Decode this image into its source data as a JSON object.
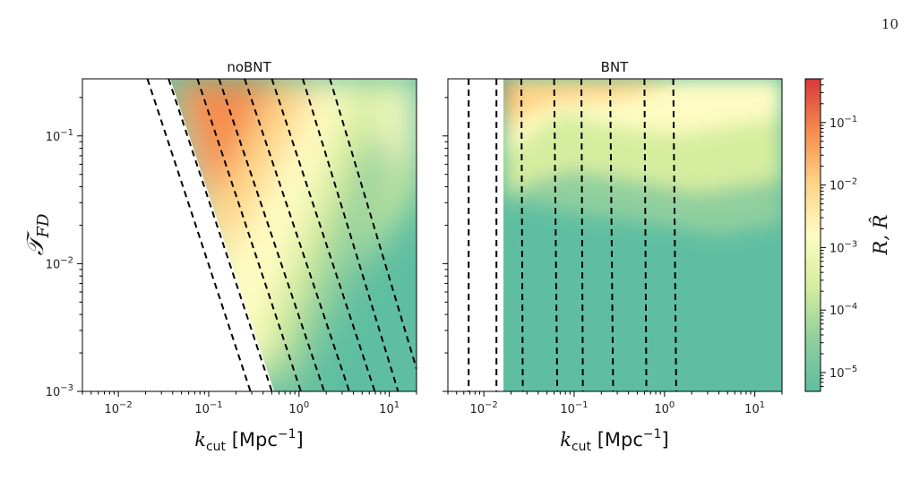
{
  "page": {
    "number": "10"
  },
  "chart_data": [
    {
      "type": "heatmap",
      "title": "noBNT",
      "xlabel": "k_cut [Mpc^-1]",
      "ylabel": "T_FD",
      "xscale": "log",
      "yscale": "log",
      "xlim": [
        0.004,
        20
      ],
      "ylim": [
        0.001,
        0.28
      ],
      "x_ticks": [
        {
          "value": 0.01,
          "label": "10^-2"
        },
        {
          "value": 0.1,
          "label": "10^-1"
        },
        {
          "value": 1,
          "label": "10^0"
        },
        {
          "value": 10,
          "label": "10^1"
        }
      ],
      "y_ticks": [
        {
          "value": 0.001,
          "label": "10^-3"
        },
        {
          "value": 0.01,
          "label": "10^-2"
        },
        {
          "value": 0.1,
          "label": "10^-1"
        }
      ],
      "contours_style": "black dashed",
      "contours": [
        {
          "x": [
            0.021,
            0.29
          ],
          "y": [
            0.28,
            0.001
          ]
        },
        {
          "x": [
            0.036,
            0.5
          ],
          "y": [
            0.28,
            0.001
          ]
        },
        {
          "x": [
            0.075,
            1.05
          ],
          "y": [
            0.28,
            0.001
          ]
        },
        {
          "x": [
            0.13,
            1.9
          ],
          "y": [
            0.28,
            0.001
          ]
        },
        {
          "x": [
            0.25,
            3.6
          ],
          "y": [
            0.28,
            0.001
          ]
        },
        {
          "x": [
            0.5,
            6.9
          ],
          "y": [
            0.28,
            0.001
          ]
        },
        {
          "x": [
            1.1,
            12.5
          ],
          "y": [
            0.28,
            0.001
          ]
        },
        {
          "x": [
            2.2,
            20
          ],
          "y": [
            0.28,
            0.0015
          ]
        }
      ]
    },
    {
      "type": "heatmap",
      "title": "BNT",
      "xlabel": "k_cut [Mpc^-1]",
      "ylabel": "",
      "xscale": "log",
      "yscale": "log",
      "xlim": [
        0.004,
        20
      ],
      "ylim": [
        0.001,
        0.28
      ],
      "x_ticks": [
        {
          "value": 0.01,
          "label": "10^-2"
        },
        {
          "value": 0.1,
          "label": "10^-1"
        },
        {
          "value": 1,
          "label": "10^0"
        },
        {
          "value": 10,
          "label": "10^1"
        }
      ],
      "contours_style": "black dashed",
      "contours": [
        {
          "x": [
            0.0068,
            0.0068
          ],
          "y": [
            0.28,
            0.001
          ]
        },
        {
          "x": [
            0.0138,
            0.0138
          ],
          "y": [
            0.28,
            0.001
          ]
        },
        {
          "x": [
            0.026,
            0.027
          ],
          "y": [
            0.28,
            0.001
          ]
        },
        {
          "x": [
            0.06,
            0.065
          ],
          "y": [
            0.28,
            0.001
          ]
        },
        {
          "x": [
            0.12,
            0.125
          ],
          "y": [
            0.28,
            0.001
          ]
        },
        {
          "x": [
            0.25,
            0.27
          ],
          "y": [
            0.28,
            0.001
          ]
        },
        {
          "x": [
            0.6,
            0.63
          ],
          "y": [
            0.28,
            0.001
          ]
        },
        {
          "x": [
            1.25,
            1.35
          ],
          "y": [
            0.28,
            0.001
          ]
        }
      ]
    }
  ],
  "colorbar": {
    "label": "R, R̂",
    "scale": "log",
    "range": [
      5e-06,
      0.5
    ],
    "ticks": [
      {
        "value": 0.1,
        "label": "10^-1"
      },
      {
        "value": 0.01,
        "label": "10^-2"
      },
      {
        "value": 0.001,
        "label": "10^-3"
      },
      {
        "value": 0.0001,
        "label": "10^-4"
      },
      {
        "value": 1e-05,
        "label": "10^-5"
      }
    ],
    "colors": [
      "#d7393b",
      "#f58c4e",
      "#fed488",
      "#fefcc2",
      "#d5ed9f",
      "#90cf9e",
      "#5fbea1"
    ]
  }
}
